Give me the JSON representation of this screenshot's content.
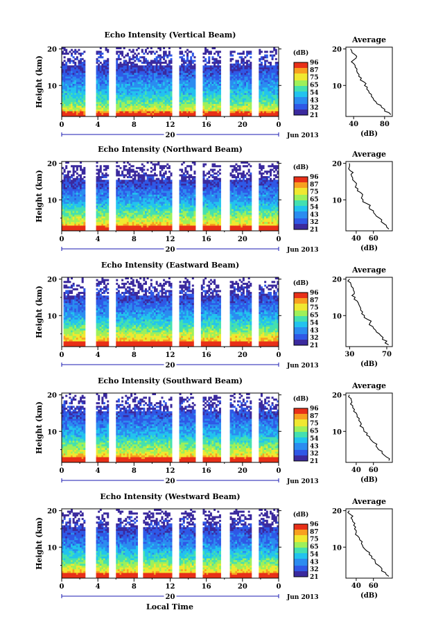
{
  "colors": {
    "scale": [
      "#3b2a9e",
      "#2f58e6",
      "#2b8cf0",
      "#22c3ee",
      "#44e0b0",
      "#9ef05a",
      "#f0e830",
      "#f8a020",
      "#e83018"
    ],
    "axis": "#000000",
    "time_axis_line": "#1a1ab0"
  },
  "figure": {
    "xlabel": "Local Time",
    "date_label": "Jun 2013",
    "day_label": "20",
    "ylabel": "Height (km)",
    "cb_unit": "(dB)",
    "cb_ticks": [
      "96",
      "87",
      "75",
      "65",
      "54",
      "43",
      "32",
      "21"
    ],
    "avg_title": "Average",
    "avg_xlabel": "(dB)",
    "ytick_labels": [
      "20",
      "10"
    ],
    "xtick_labels": [
      "0",
      "4",
      "8",
      "12",
      "16",
      "20",
      "0"
    ]
  },
  "chart_data": [
    {
      "type": "heatmap",
      "title": "Echo Intensity (Vertical Beam)",
      "xlabel": "",
      "ylabel": "Height (km)",
      "xlim": [
        0,
        24
      ],
      "ylim": [
        1.5,
        20.5
      ],
      "x_ticks": [
        0,
        4,
        8,
        12,
        16,
        20,
        24
      ],
      "y_ticks": [
        10,
        20
      ],
      "data_gaps_hours": [
        [
          2.6,
          3.8
        ],
        [
          5.2,
          6.1
        ],
        [
          12.1,
          13.0
        ],
        [
          14.8,
          15.6
        ],
        [
          17.6,
          18.6
        ],
        [
          20.9,
          21.8
        ]
      ],
      "colorbar": {
        "label": "(dB)",
        "ticks": [
          96,
          87,
          75,
          65,
          54,
          43,
          32,
          21
        ]
      },
      "average_profile": {
        "title": "Average",
        "xlabel": "(dB)",
        "ylabel": "",
        "xlim": [
          30,
          90
        ],
        "x_ticks": [
          40,
          80
        ],
        "y_ticks": [
          10,
          20
        ],
        "height_km": [
          2,
          3,
          4,
          5,
          6,
          7,
          8,
          9,
          10,
          11,
          12,
          13,
          14,
          15,
          16,
          17,
          18,
          19,
          20
        ],
        "db": [
          88,
          80,
          76,
          70,
          66,
          63,
          60,
          57,
          54,
          53,
          50,
          47,
          44,
          42,
          40,
          40,
          44,
          38,
          36
        ]
      }
    },
    {
      "type": "heatmap",
      "title": "Echo Intensity (Northward Beam)",
      "xlabel": "",
      "ylabel": "Height (km)",
      "xlim": [
        0,
        24
      ],
      "ylim": [
        1.5,
        20.5
      ],
      "x_ticks": [
        0,
        4,
        8,
        12,
        16,
        20,
        24
      ],
      "y_ticks": [
        10,
        20
      ],
      "data_gaps_hours": [
        [
          2.6,
          3.8
        ],
        [
          5.2,
          6.1
        ],
        [
          12.1,
          13.0
        ],
        [
          14.8,
          15.6
        ],
        [
          17.6,
          18.6
        ],
        [
          20.9,
          21.8
        ]
      ],
      "colorbar": {
        "label": "(dB)",
        "ticks": [
          96,
          87,
          75,
          65,
          54,
          43,
          32,
          21
        ]
      },
      "average_profile": {
        "title": "Average",
        "xlabel": "(dB)",
        "ylabel": "",
        "xlim": [
          28,
          82
        ],
        "x_ticks": [
          40,
          60
        ],
        "y_ticks": [
          10,
          20
        ],
        "height_km": [
          2,
          3,
          4,
          5,
          6,
          7,
          8,
          9,
          10,
          11,
          12,
          13,
          14,
          15,
          16,
          17,
          18,
          19,
          20
        ],
        "db": [
          78,
          75,
          69,
          67,
          62,
          60,
          55,
          52,
          48,
          47,
          45,
          42,
          40,
          38,
          36,
          34,
          33,
          32,
          32
        ]
      }
    },
    {
      "type": "heatmap",
      "title": "Echo Intensity (Eastward Beam)",
      "xlabel": "",
      "ylabel": "Height (km)",
      "xlim": [
        0,
        24
      ],
      "ylim": [
        1.5,
        20.5
      ],
      "x_ticks": [
        0,
        4,
        8,
        12,
        16,
        20,
        24
      ],
      "y_ticks": [
        10,
        20
      ],
      "data_gaps_hours": [
        [
          0.0,
          0.2
        ],
        [
          2.6,
          3.8
        ],
        [
          5.2,
          6.1
        ],
        [
          12.1,
          13.0
        ],
        [
          14.6,
          15.4
        ],
        [
          17.6,
          18.6
        ],
        [
          20.9,
          21.8
        ]
      ],
      "colorbar": {
        "label": "(dB)",
        "ticks": [
          96,
          87,
          75,
          65,
          54,
          43,
          32,
          21
        ]
      },
      "average_profile": {
        "title": "Average",
        "xlabel": "(dB)",
        "ylabel": "",
        "xlim": [
          26,
          76
        ],
        "x_ticks": [
          30,
          70
        ],
        "y_ticks": [
          10,
          20
        ],
        "height_km": [
          2,
          3,
          4,
          5,
          6,
          7,
          8,
          9,
          10,
          11,
          12,
          13,
          14,
          15,
          16,
          17,
          18,
          19,
          20
        ],
        "db": [
          72,
          70,
          66,
          62,
          58,
          55,
          52,
          49,
          46,
          44,
          42,
          40,
          38,
          36,
          35,
          34,
          32,
          31,
          30
        ]
      }
    },
    {
      "type": "heatmap",
      "title": "Echo Intensity (Southward Beam)",
      "xlabel": "",
      "ylabel": "Height (km)",
      "xlim": [
        0,
        24
      ],
      "ylim": [
        1.5,
        20.5
      ],
      "x_ticks": [
        0,
        4,
        8,
        12,
        16,
        20,
        24
      ],
      "y_ticks": [
        10,
        20
      ],
      "data_gaps_hours": [
        [
          2.6,
          3.8
        ],
        [
          5.2,
          6.1
        ],
        [
          12.1,
          13.0
        ],
        [
          14.8,
          15.6
        ],
        [
          17.6,
          18.6
        ],
        [
          20.9,
          21.8
        ]
      ],
      "colorbar": {
        "label": "(dB)",
        "ticks": [
          96,
          87,
          75,
          65,
          54,
          43,
          32,
          21
        ]
      },
      "average_profile": {
        "title": "Average",
        "xlabel": "(dB)",
        "ylabel": "",
        "xlim": [
          28,
          82
        ],
        "x_ticks": [
          40,
          60
        ],
        "y_ticks": [
          10,
          20
        ],
        "height_km": [
          2,
          3,
          4,
          5,
          6,
          7,
          8,
          9,
          10,
          11,
          12,
          13,
          14,
          15,
          16,
          17,
          18,
          19,
          20
        ],
        "db": [
          78,
          75,
          70,
          66,
          63,
          60,
          56,
          52,
          49,
          48,
          46,
          43,
          41,
          40,
          38,
          36,
          35,
          34,
          32
        ]
      }
    },
    {
      "type": "heatmap",
      "title": "Echo Intensity (Westward Beam)",
      "xlabel": "Local Time",
      "ylabel": "Height (km)",
      "xlim": [
        0,
        24
      ],
      "ylim": [
        1.5,
        20.5
      ],
      "x_ticks": [
        0,
        4,
        8,
        12,
        16,
        20,
        24
      ],
      "y_ticks": [
        10,
        20
      ],
      "data_gaps_hours": [
        [
          2.6,
          3.8
        ],
        [
          5.2,
          6.1
        ],
        [
          8.5,
          8.9
        ],
        [
          12.1,
          13.0
        ],
        [
          14.8,
          15.6
        ],
        [
          17.6,
          18.6
        ],
        [
          20.9,
          21.8
        ]
      ],
      "colorbar": {
        "label": "(dB)",
        "ticks": [
          96,
          87,
          75,
          65,
          54,
          43,
          32,
          21
        ]
      },
      "average_profile": {
        "title": "Average",
        "xlabel": "(dB)",
        "ylabel": "",
        "xlim": [
          28,
          82
        ],
        "x_ticks": [
          40,
          60
        ],
        "y_ticks": [
          10,
          20
        ],
        "height_km": [
          2,
          3,
          4,
          5,
          6,
          7,
          8,
          9,
          10,
          11,
          12,
          13,
          14,
          15,
          16,
          17,
          18,
          19,
          20
        ],
        "db": [
          78,
          74,
          70,
          66,
          62,
          58,
          55,
          52,
          48,
          46,
          44,
          42,
          40,
          38,
          37,
          36,
          34,
          33,
          32
        ]
      }
    }
  ]
}
